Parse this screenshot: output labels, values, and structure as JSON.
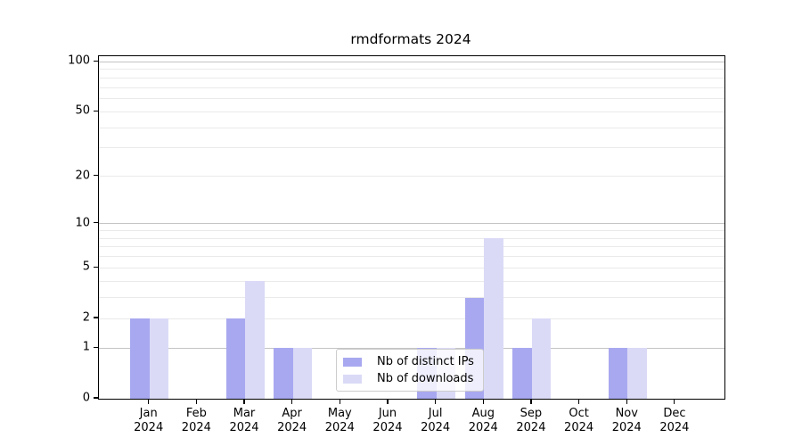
{
  "chart_data": {
    "type": "bar",
    "title": "rmdformats 2024",
    "categories": [
      "Jan",
      "Feb",
      "Mar",
      "Apr",
      "May",
      "Jun",
      "Jul",
      "Aug",
      "Sep",
      "Oct",
      "Nov",
      "Dec"
    ],
    "year_label": "2024",
    "series": [
      {
        "name": "Nb of distinct IPs",
        "color": "#a8a8f0",
        "values": [
          2,
          0,
          2,
          1,
          0,
          0,
          1,
          3,
          1,
          0,
          1,
          0
        ]
      },
      {
        "name": "Nb of downloads",
        "color": "#dadaf7",
        "values": [
          2,
          0,
          4,
          1,
          0,
          0,
          1,
          8,
          2,
          0,
          1,
          0
        ]
      }
    ],
    "xlabel": "",
    "ylabel": "",
    "yscale": "log1p",
    "ylim": [
      0,
      108
    ],
    "y_ticks": [
      0,
      1,
      2,
      5,
      10,
      20,
      50,
      100
    ],
    "gridlines": {
      "major_values": [
        1,
        10,
        100
      ],
      "minor_values": [
        2,
        3,
        4,
        5,
        6,
        7,
        8,
        9,
        20,
        30,
        40,
        50,
        60,
        70,
        80,
        90
      ],
      "major_color": "#c4c4c4",
      "minor_color": "#eaeaea"
    },
    "legend": {
      "position": "lower center",
      "background": "rgba(255,255,255,0.8)",
      "border_color": "#cccccc"
    },
    "colors": {
      "spine": "#000000",
      "text": "#000000",
      "background": "#ffffff"
    }
  }
}
